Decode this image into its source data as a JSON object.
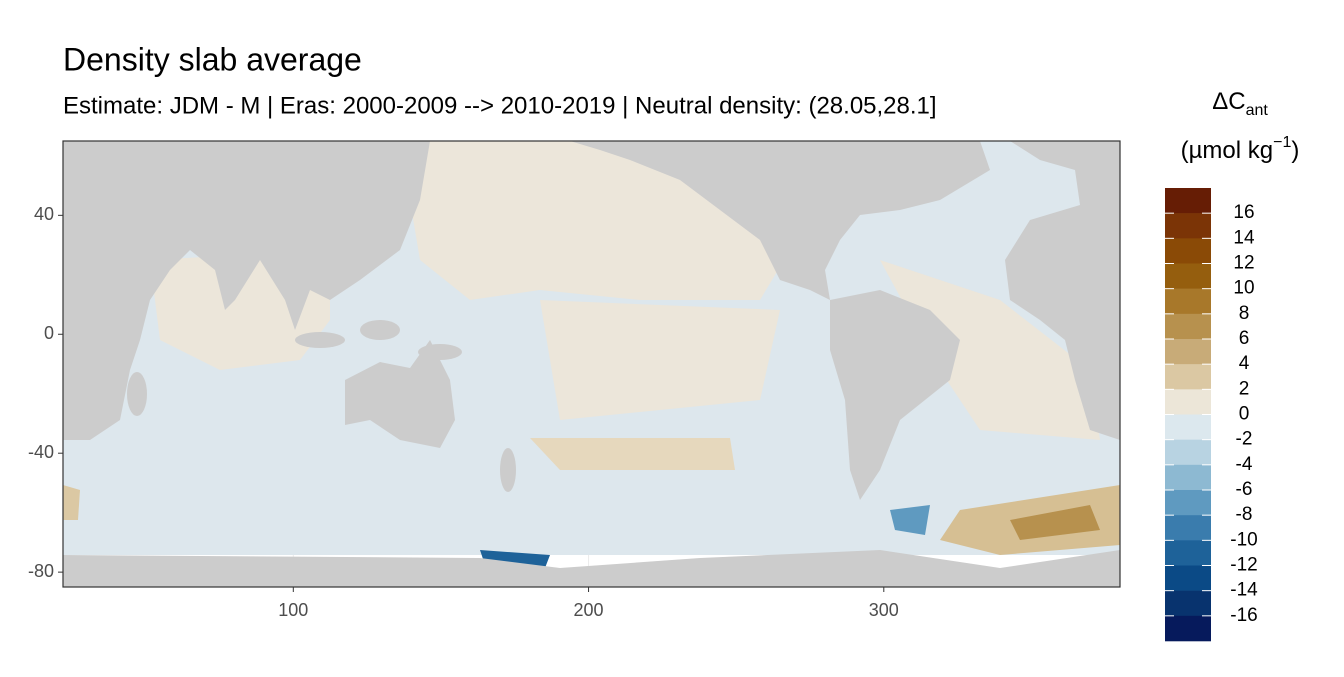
{
  "chart_data": {
    "type": "map",
    "title": "Density slab average",
    "subtitle": "Estimate: JDM - M | Eras: 2000-2009 --> 2010-2019 | Neutral density: (28.05,28.1]",
    "xlim": [
      22,
      380
    ],
    "ylim": [
      -85,
      65
    ],
    "xticks": [
      100,
      200,
      300
    ],
    "yticks": [
      40,
      0,
      -40,
      -80
    ],
    "grid": true,
    "legend": {
      "title": "ΔC",
      "title_sub": "ant",
      "units": "(µmol kg",
      "units_sup": "−1",
      "units_close": ")",
      "lim": [
        -18,
        18
      ],
      "breaks": [
        16,
        14,
        12,
        10,
        8,
        6,
        4,
        2,
        0,
        -2,
        -4,
        -6,
        -8,
        -10,
        -12,
        -14,
        -16
      ],
      "colors": [
        "#661d05",
        "#7b3406",
        "#8a4a06",
        "#955e0e",
        "#a8782a",
        "#b7914e",
        "#c8ab78",
        "#dbc8a3",
        "#ece6d8",
        "#dce8ee",
        "#b8d3e2",
        "#8db9d2",
        "#5f9ac0",
        "#3a7cad",
        "#1e6299",
        "#0b4a86",
        "#08336e",
        "#061a5c"
      ]
    }
  }
}
